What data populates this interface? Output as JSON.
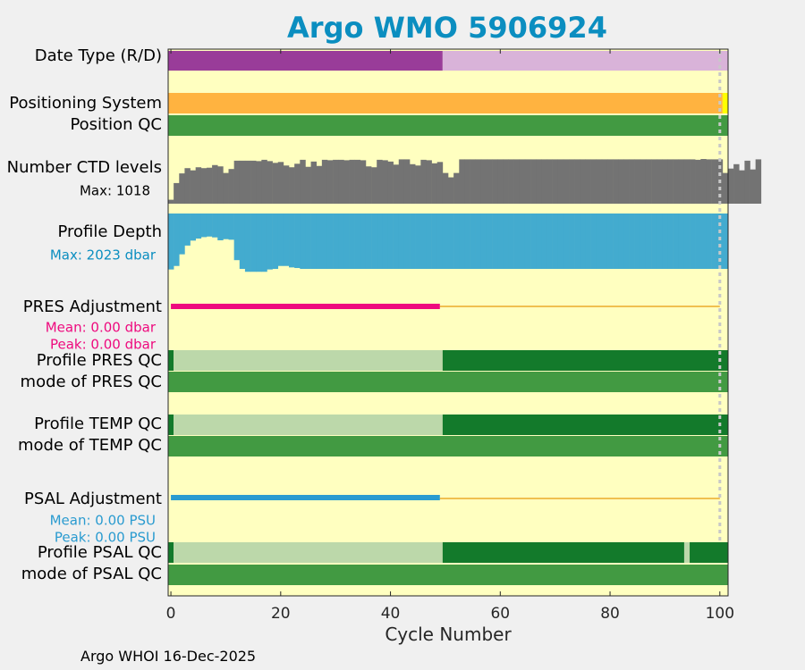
{
  "title": "Argo WMO 5906924",
  "footer": "Argo WHOI 16-Dec-2025",
  "colors": {
    "plot_background": "#ffffc0",
    "date_type_r": "#993c99",
    "date_type_d": "#d9b3d9",
    "positioning": "#ffb340",
    "positioning_end": "#ffff00",
    "qc_good": "#429a42",
    "qc_dark": "#137a2b",
    "qc_light": "#bcd8aa",
    "ctd_levels": "#737373",
    "profile_depth": "#43abcf",
    "pres_adjustment": "#ee0a7e",
    "psal_adjustment": "#2a9bd0",
    "zero_line": "#f0c050",
    "dotted_line": "#c8c8c8"
  },
  "chart_data": {
    "type": "bar",
    "xlabel": "Cycle Number",
    "xlim": [
      -0.5,
      101.5
    ],
    "xticks": [
      "0",
      "20",
      "40",
      "60",
      "80",
      "100"
    ],
    "rows": {
      "date_type": {
        "label": "Date Type (R/D)",
        "realtime_until": 49
      },
      "positioning": {
        "label": "Positioning System"
      },
      "position_qc": {
        "label": "Position QC"
      },
      "ctd_levels": {
        "label": "Number CTD levels",
        "max_label": "Max: 1018",
        "max": 1018
      },
      "profile_depth": {
        "label": "Profile Depth",
        "max_label": "Max: 2023 dbar",
        "max": 2023
      },
      "pres_adjustment": {
        "label": "PRES Adjustment",
        "mean_label": "Mean: 0.00 dbar",
        "peak_label": "Peak: 0.00 dbar",
        "adjusted_until": 49
      },
      "profile_pres_qc": {
        "label": "Profile PRES QC"
      },
      "mode_pres_qc": {
        "label": "mode of PRES QC"
      },
      "profile_temp_qc": {
        "label": "Profile TEMP QC"
      },
      "mode_temp_qc": {
        "label": "mode of TEMP QC"
      },
      "psal_adjustment": {
        "label": "PSAL Adjustment",
        "mean_label": "Mean: 0.00 PSU",
        "peak_label": "Peak: 0.00 PSU",
        "adjusted_until": 49
      },
      "profile_psal_qc": {
        "label": "Profile PSAL QC",
        "light_cycles": [
          94
        ]
      },
      "mode_psal_qc": {
        "label": "mode of PSAL QC"
      }
    },
    "ctd_levels_values": [
      90,
      470,
      690,
      810,
      760,
      830,
      810,
      820,
      880,
      850,
      700,
      790,
      980,
      980,
      980,
      980,
      970,
      1000,
      970,
      930,
      950,
      870,
      830,
      910,
      1000,
      840,
      960,
      860,
      1000,
      990,
      1000,
      1000,
      990,
      1000,
      1000,
      990,
      850,
      830,
      1000,
      990,
      960,
      890,
      1010,
      1010,
      900,
      870,
      1000,
      990,
      920,
      950,
      700,
      600,
      700,
      1010,
      1010,
      1010,
      1010,
      1010,
      1010,
      1010,
      1010,
      1010,
      1010,
      1010,
      1010,
      1010,
      1010,
      1010,
      1010,
      1010,
      1010,
      1010,
      1010,
      1010,
      1010,
      1010,
      1010,
      1010,
      1010,
      1010,
      1010,
      1010,
      1010,
      1010,
      1010,
      1010,
      1010,
      1010,
      1010,
      1010,
      1010,
      1010,
      1010,
      1010,
      1010,
      1010,
      1000,
      1018,
      1010,
      1010,
      1010,
      700,
      800,
      900,
      760,
      980,
      780,
      1010
    ],
    "profile_depth_values": [
      1920,
      1800,
      1400,
      1100,
      930,
      860,
      810,
      790,
      820,
      920,
      880,
      900,
      1600,
      1900,
      2000,
      2000,
      2000,
      2000,
      1920,
      1900,
      1800,
      1800,
      1850,
      1870,
      1900,
      1900,
      1900,
      1900,
      1900,
      1900,
      1900,
      1900,
      1900,
      1900,
      1900,
      1900,
      1900,
      1900,
      1900,
      1900,
      1900,
      1900,
      1900,
      1900,
      1900,
      1900,
      1900,
      1900,
      1900,
      1900,
      1900,
      1900,
      1900,
      1900,
      1900,
      1900,
      1900,
      1900,
      1900,
      1900,
      1900,
      1900,
      1900,
      1900,
      1900,
      1900,
      1900,
      1900,
      1900,
      1900,
      1900,
      1900,
      1900,
      1900,
      1900,
      1900,
      1900,
      1900,
      1900,
      1900,
      1900,
      1900,
      1900,
      1900,
      1900,
      1900,
      1900,
      1900,
      1900,
      1900,
      1900,
      1900,
      1900,
      1900,
      1900,
      1900,
      1900,
      1900,
      1900,
      1900,
      1900,
      1900
    ]
  }
}
